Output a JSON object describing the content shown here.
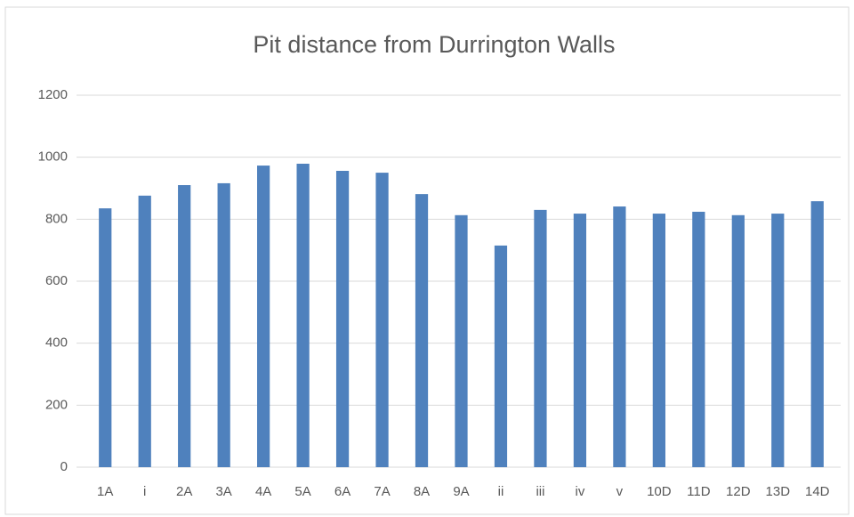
{
  "chart_data": {
    "type": "bar",
    "title": "Pit distance from Durrington Walls",
    "categories": [
      "1A",
      "i",
      "2A",
      "3A",
      "4A",
      "5A",
      "6A",
      "7A",
      "8A",
      "9A",
      "ii",
      "iii",
      "iv",
      "v",
      "10D",
      "11D",
      "12D",
      "13D",
      "14D"
    ],
    "values": [
      835,
      876,
      910,
      916,
      973,
      979,
      956,
      950,
      881,
      813,
      715,
      830,
      818,
      841,
      818,
      824,
      813,
      818,
      858
    ],
    "color": "#4f81bd",
    "ylim": [
      0,
      1200
    ],
    "yticks": [
      0,
      200,
      400,
      600,
      800,
      1000,
      1200
    ],
    "grid": true
  }
}
